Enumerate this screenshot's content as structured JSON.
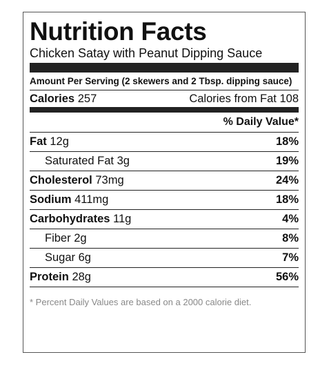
{
  "header": {
    "title": "Nutrition Facts",
    "subtitle": "Chicken Satay with Peanut Dipping Sauce"
  },
  "serving": "Amount Per Serving (2 skewers and 2 Tbsp. dipping sauce)",
  "calories": {
    "label": "Calories",
    "value": "257",
    "fat_label": "Calories from Fat",
    "fat_value": "108"
  },
  "daily_value_header": "% Daily Value*",
  "rows": [
    {
      "name": "Fat",
      "amount": "12g",
      "dv": "18%",
      "indent": false
    },
    {
      "name": "Saturated Fat",
      "amount": "3g",
      "dv": "19%",
      "indent": true
    },
    {
      "name": "Cholesterol",
      "amount": "73mg",
      "dv": "24%",
      "indent": false
    },
    {
      "name": "Sodium",
      "amount": "411mg",
      "dv": "18%",
      "indent": false
    },
    {
      "name": "Carbohydrates",
      "amount": "11g",
      "dv": "4%",
      "indent": false
    },
    {
      "name": "Fiber",
      "amount": "2g",
      "dv": "8%",
      "indent": true
    },
    {
      "name": "Sugar",
      "amount": "6g",
      "dv": "7%",
      "indent": true
    },
    {
      "name": "Protein",
      "amount": "28g",
      "dv": "56%",
      "indent": false
    }
  ],
  "footnote": "* Percent Daily Values are based on a 2000 calorie diet."
}
